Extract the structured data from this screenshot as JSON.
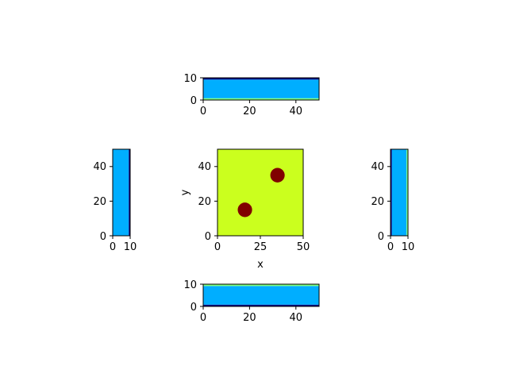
{
  "colors": {
    "field": "#cbff1e",
    "particle": "#800000",
    "wall": "#00aeff",
    "wall_edge": "#00007f",
    "wall_inner": "#7dff7a",
    "frame": "#000000"
  },
  "chart_data": [
    {
      "type": "heatmap",
      "id": "main",
      "xlabel": "x",
      "ylabel": "y",
      "xlim": [
        0,
        50
      ],
      "ylim": [
        0,
        50
      ],
      "xticks": [
        "0",
        "25",
        "50"
      ],
      "yticks": [
        "0",
        "20",
        "40"
      ],
      "grid": false,
      "background_value": "field",
      "circles": [
        {
          "cx": 16,
          "cy": 15,
          "r": 4.2
        },
        {
          "cx": 35,
          "cy": 35,
          "r": 4.2
        }
      ]
    },
    {
      "type": "heatmap",
      "id": "top",
      "xlim": [
        0,
        50
      ],
      "ylim": [
        0,
        10
      ],
      "xticks": [
        "0",
        "20",
        "40"
      ],
      "yticks": [
        "0",
        "10"
      ],
      "bands": [
        {
          "from": 0,
          "to": 0.8,
          "color": "wall_inner"
        },
        {
          "from": 0.8,
          "to": 9.2,
          "color": "wall"
        },
        {
          "from": 9.2,
          "to": 10,
          "color": "wall_edge"
        }
      ]
    },
    {
      "type": "heatmap",
      "id": "bottom",
      "xlim": [
        0,
        50
      ],
      "ylim": [
        0,
        10
      ],
      "xticks": [
        "0",
        "20",
        "40"
      ],
      "yticks": [
        "0",
        "10"
      ],
      "bands": [
        {
          "from": 0,
          "to": 0.8,
          "color": "wall_edge"
        },
        {
          "from": 0.8,
          "to": 9.2,
          "color": "wall"
        },
        {
          "from": 9.2,
          "to": 10,
          "color": "wall_inner"
        }
      ]
    },
    {
      "type": "heatmap",
      "id": "left",
      "xlim": [
        0,
        10
      ],
      "ylim": [
        0,
        50
      ],
      "xticks": [
        "0",
        "10"
      ],
      "yticks": [
        "0",
        "20",
        "40"
      ],
      "bands": [
        {
          "from": 0,
          "to": 9.2,
          "color": "wall"
        },
        {
          "from": 9.2,
          "to": 10,
          "color": "wall_edge"
        }
      ]
    },
    {
      "type": "heatmap",
      "id": "right",
      "xlim": [
        0,
        10
      ],
      "ylim": [
        0,
        50
      ],
      "xticks": [
        "0",
        "10"
      ],
      "yticks": [
        "0",
        "20",
        "40"
      ],
      "bands": [
        {
          "from": 0,
          "to": 0.8,
          "color": "wall_edge"
        },
        {
          "from": 0.8,
          "to": 9.2,
          "color": "wall"
        },
        {
          "from": 9.2,
          "to": 10,
          "color": "wall_inner"
        }
      ]
    }
  ]
}
